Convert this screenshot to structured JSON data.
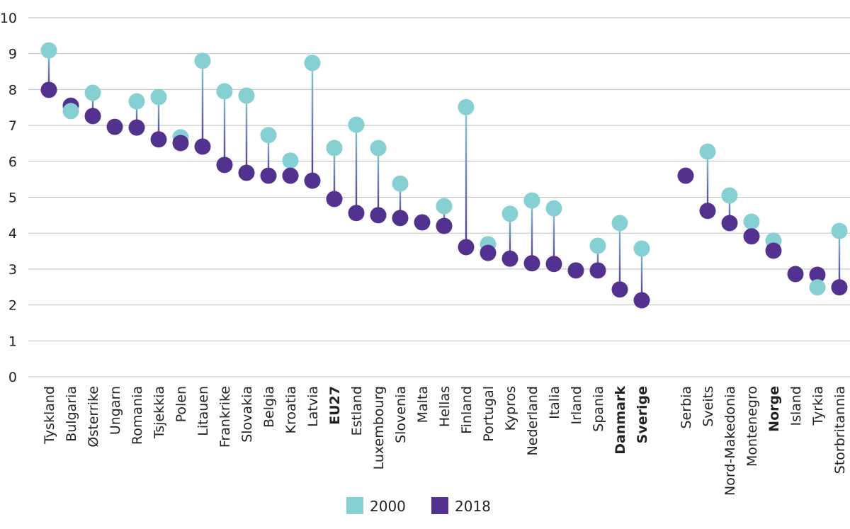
{
  "chart_data": {
    "type": "dumbbell",
    "title": "",
    "xlabel": "",
    "ylabel": "",
    "ylim": [
      0,
      10
    ],
    "yticks": [
      0,
      1,
      2,
      3,
      4,
      5,
      6,
      7,
      8,
      9,
      10
    ],
    "grid": true,
    "legend_position": "bottom",
    "colors": {
      "2000": "#86cfd2",
      "2018": "#53318f"
    },
    "series": [
      {
        "name": "2000",
        "values": [
          9.09,
          7.4,
          7.91,
          null,
          7.67,
          7.79,
          6.67,
          8.8,
          7.95,
          7.83,
          6.73,
          6.02,
          8.74,
          6.37,
          7.02,
          6.37,
          5.38,
          null,
          4.75,
          7.51,
          3.69,
          4.54,
          4.91,
          4.69,
          null,
          3.65,
          4.28,
          3.57,
          null,
          6.27,
          5.05,
          4.32,
          3.79,
          null,
          2.49,
          4.06
        ]
      },
      {
        "name": "2018",
        "values": [
          7.99,
          7.55,
          7.26,
          6.96,
          6.94,
          6.61,
          6.51,
          6.41,
          5.9,
          5.68,
          5.6,
          5.6,
          5.46,
          4.95,
          4.56,
          4.5,
          4.42,
          4.3,
          4.2,
          3.61,
          3.45,
          3.29,
          3.16,
          3.14,
          2.96,
          2.96,
          2.43,
          2.13,
          5.6,
          4.62,
          4.28,
          3.91,
          3.51,
          2.86,
          2.84,
          2.49
        ]
      }
    ],
    "categories": [
      "Tyskland",
      "Bulgaria",
      "Østerrike",
      "Ungarn",
      "Romania",
      "Tsjekkia",
      "Polen",
      "Litauen",
      "Frankrike",
      "Slovakia",
      "Belgia",
      "Kroatia",
      "Latvia",
      "EU27",
      "Estland",
      "Luxembourg",
      "Slovenia",
      "Malta",
      "Hellas",
      "Finland",
      "Portugal",
      "Kypros",
      "Nederland",
      "Italia",
      "Irland",
      "Spania",
      "Danmark",
      "Sverige",
      "Serbia",
      "Sveits",
      "Nord-Makedonia",
      "Montenegro",
      "Norge",
      "Island",
      "Tyrkia",
      "Storbritannia"
    ],
    "bold_categories": [
      "EU27",
      "Danmark",
      "Sverige",
      "Norge"
    ],
    "legend": [
      "2000",
      "2018"
    ]
  }
}
